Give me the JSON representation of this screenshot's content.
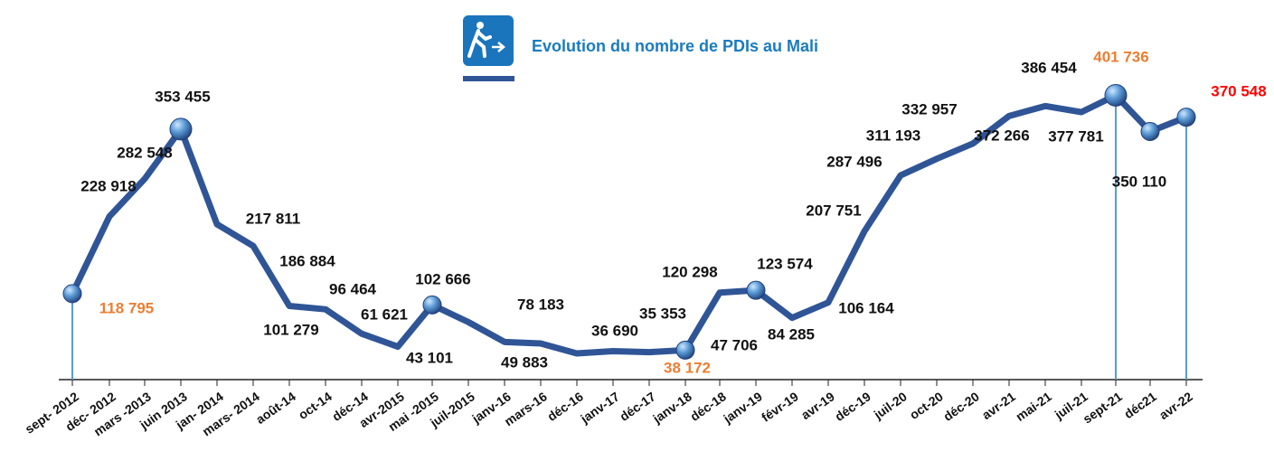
{
  "chart_data": {
    "type": "line",
    "title": "Evolution du nombre de PDIs au Mali",
    "categories": [
      "sept- 2012",
      "déc- 2012",
      "mars -2013",
      "juin 2013",
      "jan- 2014",
      "mars- 2014",
      "août-14",
      "oct-14",
      "déc-14",
      "avr-2015",
      "mai -2015",
      "juil-2015",
      "janv-16",
      "mars-16",
      "déc-16",
      "janv-17",
      "déc-17",
      "janv-18",
      "déc-18",
      "janv-19",
      "févr-19",
      "avr-19",
      "déc-19",
      "juil-20",
      "oct-20",
      "déc-20",
      "avr-21",
      "mai-21",
      "juil-21",
      "sept-21",
      "déc21",
      "avr-22"
    ],
    "series": [
      {
        "name": "PDIs",
        "color": "#2f5597",
        "values": [
          118795,
          228918,
          282548,
          353455,
          217811,
          186884,
          101279,
          96464,
          61621,
          43101,
          102666,
          78183,
          49883,
          47706,
          33500,
          36690,
          35353,
          38172,
          120298,
          123574,
          84285,
          106164,
          207751,
          287496,
          311193,
          332957,
          372266,
          386454,
          377781,
          401736,
          350110,
          370548
        ],
        "value_labels": [
          "118 795",
          "228 918",
          "282 548",
          "353 455",
          "217 811",
          "186 884",
          "101 279",
          "96 464",
          "61 621",
          "43 101",
          "102 666",
          "78 183",
          "49 883",
          "47 706",
          null,
          "36 690",
          "35 353",
          "38 172",
          "120 298",
          "123 574",
          "84 285",
          "106 164",
          "207 751",
          "287 496",
          "311 193",
          "332 957",
          "372 266",
          "386 454",
          "377 781",
          "401 736",
          "350 110",
          "370 548"
        ],
        "value_label_colors": {
          "0": "#ed7d31",
          "17": "#ed7d31",
          "29": "#ed7d31",
          "31": "#ff0000"
        },
        "markers": [
          0,
          3,
          10,
          17,
          19,
          29,
          30,
          31
        ],
        "drop_lines": [
          0,
          29,
          31
        ]
      }
    ],
    "ylim": [
      0,
      530000
    ]
  }
}
